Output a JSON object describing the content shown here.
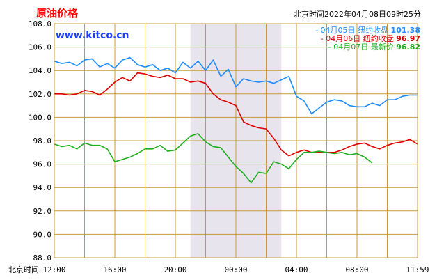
{
  "header": {
    "title": "原油价格",
    "site": "www.kitco.cn",
    "timestamp": "北京时间2022年04月08日09时25分"
  },
  "colors": {
    "title": "#ff0000",
    "site": "#2040ff",
    "grid": "#c89a3c",
    "shade": "#e8e4ee",
    "blue": "#1e8bff",
    "red": "#dd0000",
    "green": "#1fae1f"
  },
  "chart_data": {
    "type": "line",
    "title": "原油价格",
    "ylim": [
      88,
      108
    ],
    "y_ticks": [
      "108.0",
      "106.0",
      "104.0",
      "102.0",
      "100.0",
      "98.0",
      "96.0",
      "94.0",
      "92.0",
      "90.0",
      "88.0"
    ],
    "x_axis_label": "北京时间",
    "x_ticks": [
      "12:00",
      "16:00",
      "20:00",
      "00:00",
      "04:00",
      "08:00",
      "11:59"
    ],
    "x_range_hours": [
      0,
      24
    ],
    "shaded_region_hours": [
      9,
      15
    ],
    "legend": [
      {
        "marker": "-",
        "date": "04月05日",
        "label": "纽约收盘",
        "value": "101.38",
        "color": "#1e8bff"
      },
      {
        "marker": "-",
        "date": "04月06日",
        "label": "纽约收盘",
        "value": "96.97",
        "color": "#dd0000"
      },
      {
        "marker": "-",
        "date": "04月07日",
        "label": "最新价",
        "value": "96.82",
        "color": "#1fae1f"
      }
    ],
    "series": [
      {
        "name": "04月05日",
        "color": "#1e8bff",
        "x": [
          0,
          0.5,
          1,
          1.5,
          2,
          2.5,
          3,
          3.5,
          4,
          4.5,
          5,
          5.5,
          6,
          6.5,
          7,
          7.5,
          8,
          8.5,
          9,
          9.5,
          10,
          10.5,
          11,
          11.5,
          12,
          12.5,
          13,
          13.5,
          14,
          14.5,
          15,
          15.5,
          16,
          16.5,
          17,
          17.5,
          18,
          18.5,
          19,
          19.5,
          20,
          20.5,
          21,
          21.5,
          22,
          22.5,
          23,
          23.5,
          24
        ],
        "y": [
          104.8,
          104.6,
          104.7,
          104.4,
          104.9,
          105.0,
          104.3,
          104.6,
          104.2,
          104.9,
          105.1,
          104.5,
          104.3,
          104.5,
          104.0,
          104.2,
          103.8,
          104.7,
          104.2,
          104.8,
          104.0,
          104.9,
          103.5,
          104.1,
          102.6,
          103.3,
          103.1,
          103.0,
          103.1,
          102.9,
          103.2,
          103.5,
          101.8,
          101.4,
          100.3,
          100.8,
          101.3,
          101.5,
          101.4,
          101.0,
          100.9,
          100.9,
          101.2,
          101.0,
          101.5,
          101.5,
          101.8,
          101.9,
          101.9
        ]
      },
      {
        "name": "04月06日",
        "color": "#dd0000",
        "x": [
          0,
          0.5,
          1,
          1.5,
          2,
          2.5,
          3,
          3.5,
          4,
          4.5,
          5,
          5.5,
          6,
          6.5,
          7,
          7.5,
          8,
          8.5,
          9,
          9.5,
          10,
          10.5,
          11,
          11.5,
          12,
          12.5,
          13,
          13.5,
          14,
          14.5,
          15,
          15.5,
          16,
          16.5,
          17,
          17.5,
          18,
          18.5,
          19,
          19.5,
          20,
          20.5,
          21,
          21.5,
          22,
          22.5,
          23,
          23.5,
          24
        ],
        "y": [
          102.0,
          102.0,
          101.9,
          102.0,
          102.3,
          102.2,
          101.9,
          102.4,
          103.0,
          103.4,
          103.1,
          103.8,
          103.7,
          103.5,
          103.4,
          103.6,
          103.3,
          103.3,
          103.0,
          103.1,
          102.9,
          102.0,
          101.5,
          101.3,
          101.0,
          99.6,
          99.3,
          99.1,
          99.0,
          98.2,
          97.2,
          96.7,
          97.0,
          97.2,
          97.0,
          97.0,
          97.0,
          97.0,
          97.2,
          97.5,
          97.7,
          97.8,
          97.5,
          97.3,
          97.6,
          97.8,
          97.9,
          98.1,
          97.7
        ]
      },
      {
        "name": "04月07日",
        "color": "#1fae1f",
        "x": [
          0,
          0.5,
          1,
          1.5,
          2,
          2.5,
          3,
          3.5,
          4,
          4.5,
          5,
          5.5,
          6,
          6.5,
          7,
          7.5,
          8,
          8.5,
          9,
          9.5,
          10,
          10.5,
          11,
          11.5,
          12,
          12.5,
          13,
          13.5,
          14,
          14.5,
          15,
          15.5,
          16,
          16.5,
          17,
          17.5,
          18,
          18.5,
          19,
          19.5,
          20,
          20.5,
          21
        ],
        "y": [
          97.7,
          97.5,
          97.6,
          97.3,
          97.8,
          97.6,
          97.6,
          97.3,
          96.2,
          96.4,
          96.6,
          96.9,
          97.3,
          97.3,
          97.6,
          97.1,
          97.2,
          97.8,
          98.4,
          98.6,
          97.9,
          97.5,
          97.4,
          96.6,
          95.8,
          95.2,
          94.4,
          95.3,
          95.2,
          96.2,
          96.0,
          95.6,
          96.4,
          97.0,
          97.0,
          97.1,
          97.0,
          96.9,
          97.0,
          96.8,
          96.9,
          96.6,
          96.1
        ]
      }
    ]
  }
}
